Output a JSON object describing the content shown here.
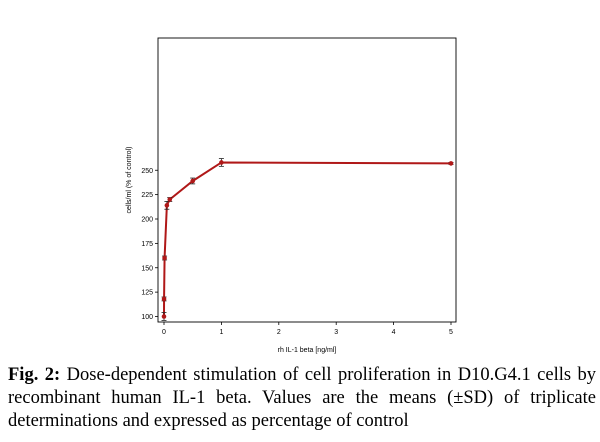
{
  "chart_data": {
    "type": "line",
    "xlabel": "rh IL-1 beta [ng/ml]",
    "ylabel": "cells/ml (% of control)",
    "xlim": [
      0,
      5
    ],
    "ylim": [
      100,
      260
    ],
    "xticks": [
      0,
      1,
      2,
      3,
      4,
      5
    ],
    "yticks": [
      100,
      125,
      150,
      175,
      200,
      225,
      250
    ],
    "series": [
      {
        "color": "#b01818",
        "x": [
          0,
          0.001,
          0.01,
          0.05,
          0.1,
          0.5,
          1,
          5
        ],
        "y": [
          100,
          118,
          160,
          214,
          220,
          239,
          258,
          257
        ],
        "err": [
          4,
          2,
          2,
          4,
          2,
          3,
          4,
          1
        ]
      }
    ],
    "grid": false,
    "legend": "none"
  },
  "caption": {
    "label": "Fig. 2:",
    "text": " Dose-dependent stimulation of cell proliferation in D10.G4.1 cells by recombinant human IL-1 beta. Values are the means (±SD) of triplicate determinations and expressed as percentage of control"
  }
}
